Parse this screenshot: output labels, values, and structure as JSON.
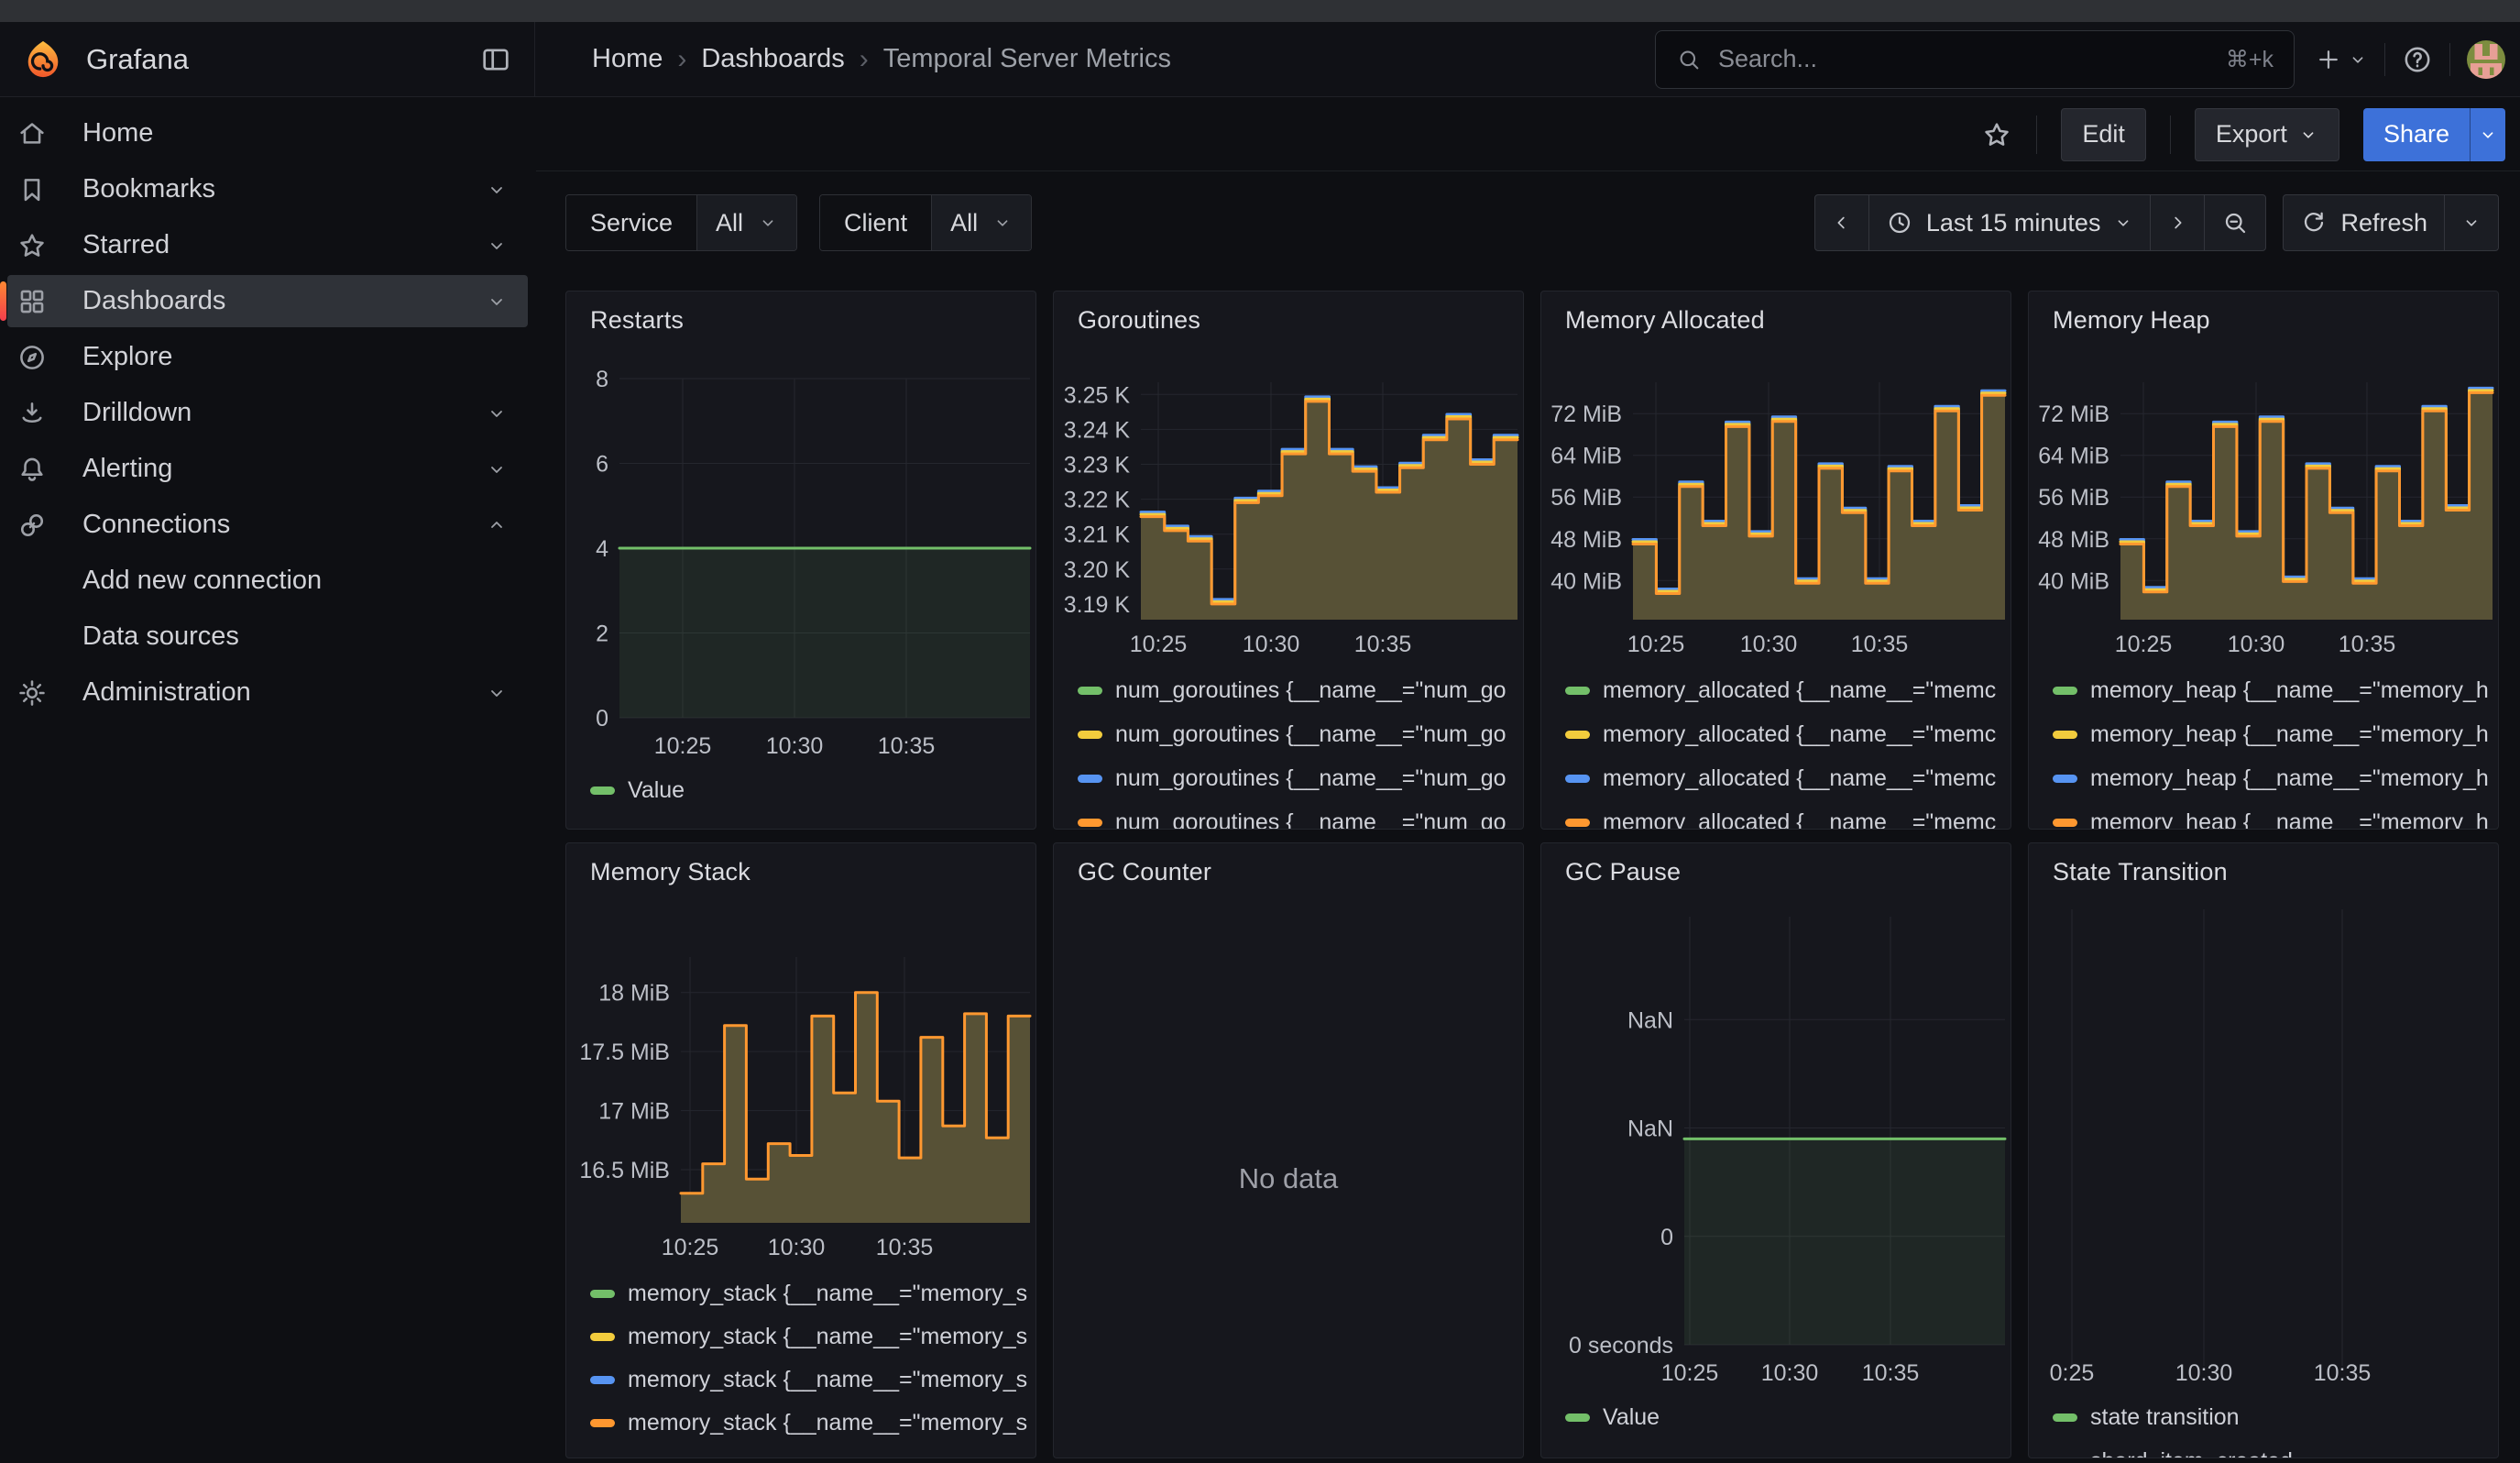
{
  "header": {
    "product": "Grafana",
    "breadcrumbs": [
      "Home",
      "Dashboards",
      "Temporal Server Metrics"
    ],
    "breadcrumb_sep": "›",
    "search_placeholder": "Search...",
    "search_shortcut": "⌘+k"
  },
  "toolbar": {
    "edit": "Edit",
    "export": "Export",
    "share": "Share"
  },
  "filters": {
    "service": {
      "label": "Service",
      "value": "All"
    },
    "client": {
      "label": "Client",
      "value": "All"
    }
  },
  "timebar": {
    "range": "Last 15 minutes",
    "refresh": "Refresh"
  },
  "sidebar": {
    "items": [
      {
        "icon": "home",
        "label": "Home"
      },
      {
        "icon": "bookmark",
        "label": "Bookmarks",
        "chevron": "down"
      },
      {
        "icon": "star",
        "label": "Starred",
        "chevron": "down"
      },
      {
        "icon": "apps",
        "label": "Dashboards",
        "chevron": "down",
        "selected": true
      },
      {
        "icon": "compass",
        "label": "Explore"
      },
      {
        "icon": "drilldown",
        "label": "Drilldown",
        "chevron": "down"
      },
      {
        "icon": "bell",
        "label": "Alerting",
        "chevron": "down"
      },
      {
        "icon": "link",
        "label": "Connections",
        "chevron": "up"
      },
      {
        "label": "Add new connection",
        "sub": true
      },
      {
        "label": "Data sources",
        "sub": true
      },
      {
        "icon": "cog",
        "label": "Administration",
        "chevron": "down"
      }
    ]
  },
  "colors": {
    "green": "#73BF69",
    "yellow": "#F2CC3D",
    "blue": "#5794F2",
    "orange": "#FF9830",
    "share_blue": "#3D71D9"
  },
  "panels": [
    {
      "id": "restarts",
      "title": "Restarts",
      "chart_data": {
        "type": "area",
        "x_tick_labels": [
          "10:25",
          "10:30",
          "10:35"
        ],
        "y_ticks": [
          {
            "v": 0,
            "label": "0"
          },
          {
            "v": 2,
            "label": "2"
          },
          {
            "v": 4,
            "label": "4"
          },
          {
            "v": 6,
            "label": "6"
          },
          {
            "v": 8,
            "label": "8"
          }
        ],
        "ylim": [
          0,
          8
        ],
        "series": [
          {
            "name": "Value",
            "color": "#73BF69",
            "values": [
              4,
              4,
              4,
              4,
              4,
              4,
              4,
              4,
              4,
              4,
              4,
              4,
              4,
              4,
              4,
              4
            ]
          }
        ],
        "fill": "rgba(115,191,105,0.10)",
        "legend": [
          {
            "label": "Value",
            "color": "#73BF69"
          }
        ]
      }
    },
    {
      "id": "goroutines",
      "title": "Goroutines",
      "chart_data": {
        "type": "area",
        "x_tick_labels": [
          "10:25",
          "10:30",
          "10:35"
        ],
        "y_ticks": [
          {
            "v": 3.19,
            "label": "3.19 K"
          },
          {
            "v": 3.2,
            "label": "3.20 K"
          },
          {
            "v": 3.21,
            "label": "3.21 K"
          },
          {
            "v": 3.22,
            "label": "3.22 K"
          },
          {
            "v": 3.23,
            "label": "3.23 K"
          },
          {
            "v": 3.24,
            "label": "3.24 K"
          },
          {
            "v": 3.25,
            "label": "3.25 K"
          }
        ],
        "ylim": [
          3.1855,
          3.2535
        ],
        "series": [
          {
            "name": "num_goroutines",
            "color": "#FF9830",
            "values": [
              3.215,
              3.211,
              3.208,
              3.19,
              3.219,
              3.221,
              3.233,
              3.248,
              3.233,
              3.228,
              3.222,
              3.229,
              3.237,
              3.243,
              3.23,
              3.237
            ]
          }
        ],
        "fill": "#575136",
        "legend": [
          {
            "label": "num_goroutines {__name__=\"num_go",
            "color": "#73BF69"
          },
          {
            "label": "num_goroutines {__name__=\"num_go",
            "color": "#F2CC3D"
          },
          {
            "label": "num_goroutines {__name__=\"num_go",
            "color": "#5794F2"
          },
          {
            "label": "num_goroutines {__name__=\"num_go",
            "color": "#FF9830"
          }
        ]
      }
    },
    {
      "id": "memory_allocated",
      "title": "Memory Allocated",
      "chart_data": {
        "type": "area",
        "x_tick_labels": [
          "10:25",
          "10:30",
          "10:35"
        ],
        "y_ticks": [
          {
            "v": 40,
            "label": "40 MiB"
          },
          {
            "v": 48,
            "label": "48 MiB"
          },
          {
            "v": 56,
            "label": "56 MiB"
          },
          {
            "v": 64,
            "label": "64 MiB"
          },
          {
            "v": 72,
            "label": "72 MiB"
          }
        ],
        "ylim": [
          32.5,
          78
        ],
        "series": [
          {
            "name": "memory_allocated",
            "color": "#FF9830",
            "values": [
              47,
              37.5,
              58,
              50.5,
              69.5,
              48.5,
              70.5,
              39.5,
              61.5,
              53,
              39.5,
              61,
              50.5,
              72.5,
              53.5,
              75.5
            ]
          }
        ],
        "fill": "#575136",
        "legend": [
          {
            "label": "memory_allocated {__name__=\"memc",
            "color": "#73BF69"
          },
          {
            "label": "memory_allocated {__name__=\"memc",
            "color": "#F2CC3D"
          },
          {
            "label": "memory_allocated {__name__=\"memc",
            "color": "#5794F2"
          },
          {
            "label": "memory_allocated {__name__=\"memc",
            "color": "#FF9830"
          }
        ]
      }
    },
    {
      "id": "memory_heap",
      "title": "Memory Heap",
      "chart_data": {
        "type": "area",
        "x_tick_labels": [
          "10:25",
          "10:30",
          "10:35"
        ],
        "y_ticks": [
          {
            "v": 40,
            "label": "40 MiB"
          },
          {
            "v": 48,
            "label": "48 MiB"
          },
          {
            "v": 56,
            "label": "56 MiB"
          },
          {
            "v": 64,
            "label": "64 MiB"
          },
          {
            "v": 72,
            "label": "72 MiB"
          }
        ],
        "ylim": [
          32.5,
          78
        ],
        "series": [
          {
            "name": "memory_heap",
            "color": "#FF9830",
            "values": [
              47,
              37.8,
              58,
              50.5,
              69.5,
              48.5,
              70.5,
              39.8,
              61.5,
              53,
              39.5,
              61,
              50.5,
              72.5,
              53.5,
              76
            ]
          }
        ],
        "fill": "#575136",
        "legend": [
          {
            "label": "memory_heap {__name__=\"memory_h",
            "color": "#73BF69"
          },
          {
            "label": "memory_heap {__name__=\"memory_h",
            "color": "#F2CC3D"
          },
          {
            "label": "memory_heap {__name__=\"memory_h",
            "color": "#5794F2"
          },
          {
            "label": "memory_heap {__name__=\"memory_h",
            "color": "#FF9830"
          }
        ]
      }
    },
    {
      "id": "memory_stack",
      "title": "Memory Stack",
      "chart_data": {
        "type": "area",
        "x_tick_labels": [
          "10:25",
          "10:30",
          "10:35"
        ],
        "y_ticks": [
          {
            "v": 16.5,
            "label": "16.5 MiB"
          },
          {
            "v": 17,
            "label": "17 MiB"
          },
          {
            "v": 17.5,
            "label": "17.5 MiB"
          },
          {
            "v": 18,
            "label": "18 MiB"
          }
        ],
        "ylim": [
          16.05,
          18.3
        ],
        "series": [
          {
            "name": "memory_stack",
            "color": "#FF9830",
            "values": [
              16.3,
              16.55,
              17.72,
              16.42,
              16.72,
              16.62,
              17.8,
              17.15,
              18.0,
              17.08,
              16.6,
              17.62,
              16.87,
              17.82,
              16.77,
              17.8
            ]
          }
        ],
        "fill": "#575136",
        "legend": [
          {
            "label": "memory_stack {__name__=\"memory_s",
            "color": "#73BF69"
          },
          {
            "label": "memory_stack {__name__=\"memory_s",
            "color": "#F2CC3D"
          },
          {
            "label": "memory_stack {__name__=\"memory_s",
            "color": "#5794F2"
          },
          {
            "label": "memory_stack {__name__=\"memory_s",
            "color": "#FF9830"
          }
        ]
      }
    },
    {
      "id": "gc_counter",
      "title": "GC Counter",
      "nodata": "No data"
    },
    {
      "id": "gc_pause",
      "title": "GC Pause",
      "chart_data": {
        "type": "area",
        "x_tick_labels": [
          "10:25",
          "10:30",
          "10:35"
        ],
        "y_ticks": [
          {
            "v": 0,
            "label": "0 seconds"
          },
          {
            "v": 1,
            "label": "0"
          },
          {
            "v": 2,
            "label": "NaN"
          },
          {
            "v": 3,
            "label": "NaN"
          }
        ],
        "ylim": [
          0,
          3.95
        ],
        "series": [
          {
            "name": "Value",
            "color": "#73BF69",
            "values": [
              1.9,
              1.9,
              1.9,
              1.9,
              1.9,
              1.9,
              1.9,
              1.9,
              1.9,
              1.9,
              1.9,
              1.9,
              1.9,
              1.9,
              1.9,
              1.9
            ]
          }
        ],
        "fill": "rgba(115,191,105,0.10)",
        "legend": [
          {
            "label": "Value",
            "color": "#73BF69"
          }
        ]
      }
    },
    {
      "id": "state_transition",
      "title": "State Transition",
      "chart_data": {
        "type": "grid-only",
        "x_tick_labels": [
          "0:25",
          "10:30",
          "10:35"
        ],
        "legend": [
          {
            "label": "state transition",
            "color": "#73BF69"
          },
          {
            "label": "shard_item_created",
            "color": "#F2CC3D"
          }
        ]
      }
    }
  ]
}
